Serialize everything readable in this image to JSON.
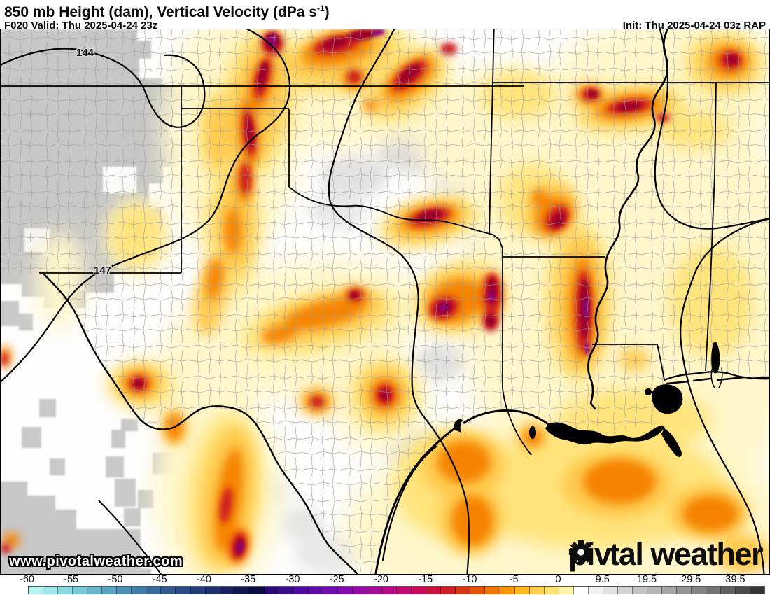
{
  "header": {
    "title_pre": "850 mb Height (dam), Vertical Velocity (dPa s",
    "title_sup": "-1",
    "title_post": ")",
    "forecast": "F020 Valid: Thu 2025-04-24 23z",
    "init": "Init: Thu 2025-04-24 03z RAP"
  },
  "map": {
    "watermark": "www.pivotalweather.com",
    "contour_labels": [
      {
        "text": "144"
      },
      {
        "text": "147"
      }
    ],
    "palette": {
      "subsidence_gray": "#c7c7c7",
      "pale_yellow": "#fff7cb",
      "yellow": "#ffe47c",
      "gold": "#ffc94e",
      "orange": "#f58300",
      "red": "#ce1d22",
      "dark_red": "#9c002c",
      "purple": "#8b0080"
    }
  },
  "logo": {
    "part1": "piv",
    "part2": "tal weather"
  },
  "colorbar": {
    "cells": [
      "#b6f5f3",
      "#9fe9ec",
      "#8bd9e2",
      "#77c9d8",
      "#66b6cd",
      "#58a3c1",
      "#4c90b5",
      "#427da9",
      "#3a6b9d",
      "#325a91",
      "#2a4a85",
      "#243b79",
      "#1e2f6d",
      "#182260",
      "#111751",
      "#0b0c42",
      "#2c0a76",
      "#3c0b8c",
      "#4c0b9e",
      "#5e0baa",
      "#700bb2",
      "#820bb0",
      "#940ba6",
      "#a60b98",
      "#b40b88",
      "#c00b72",
      "#c90b58",
      "#cc123c",
      "#d02028",
      "#da3614",
      "#e85408",
      "#f27600",
      "#f99800",
      "#ffb81e",
      "#ffce4a",
      "#ffe272",
      "#fff5ac",
      "#ffffff",
      "#f0f0f0",
      "#e2e2e2",
      "#d3d3d3",
      "#c4c4c4",
      "#b5b5b5",
      "#a5a5a5",
      "#959595",
      "#848484",
      "#727272",
      "#5f5f5f",
      "#4a4a4a",
      "#343434"
    ],
    "ticks": [
      {
        "label": "-60",
        "pos": 3.5
      },
      {
        "label": "-55",
        "pos": 9.25
      },
      {
        "label": "-50",
        "pos": 15.0
      },
      {
        "label": "-45",
        "pos": 20.75
      },
      {
        "label": "-40",
        "pos": 26.5
      },
      {
        "label": "-35",
        "pos": 32.25
      },
      {
        "label": "-30",
        "pos": 38.0
      },
      {
        "label": "-25",
        "pos": 43.75
      },
      {
        "label": "-20",
        "pos": 49.5
      },
      {
        "label": "-15",
        "pos": 55.25
      },
      {
        "label": "-10",
        "pos": 61.0
      },
      {
        "label": "-5",
        "pos": 66.75
      },
      {
        "label": "0",
        "pos": 72.5
      },
      {
        "label": "9.5",
        "pos": 78.25
      },
      {
        "label": "19.5",
        "pos": 84.0
      },
      {
        "label": "29.5",
        "pos": 89.75
      },
      {
        "label": "39.5",
        "pos": 95.5
      }
    ]
  }
}
